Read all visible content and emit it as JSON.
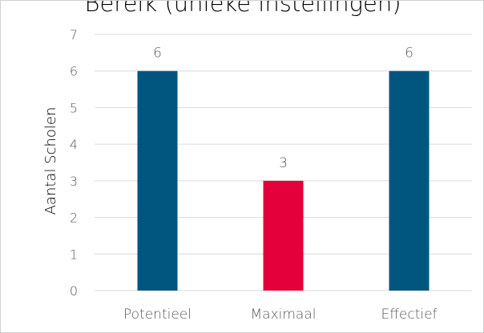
{
  "chart_data": {
    "type": "bar",
    "title": "Bereik (unieke instellingen)",
    "xlabel": "",
    "ylabel": "Aantal Scholen",
    "categories": [
      "Potentieel",
      "Maximaal",
      "Effectief"
    ],
    "values": [
      6,
      3,
      6
    ],
    "colors": [
      "#00567f",
      "#e4003b",
      "#00567f"
    ],
    "ylim": [
      0,
      7
    ],
    "yticks": [
      0,
      1,
      2,
      3,
      4,
      5,
      6,
      7
    ],
    "grid": true,
    "data_labels": true
  }
}
